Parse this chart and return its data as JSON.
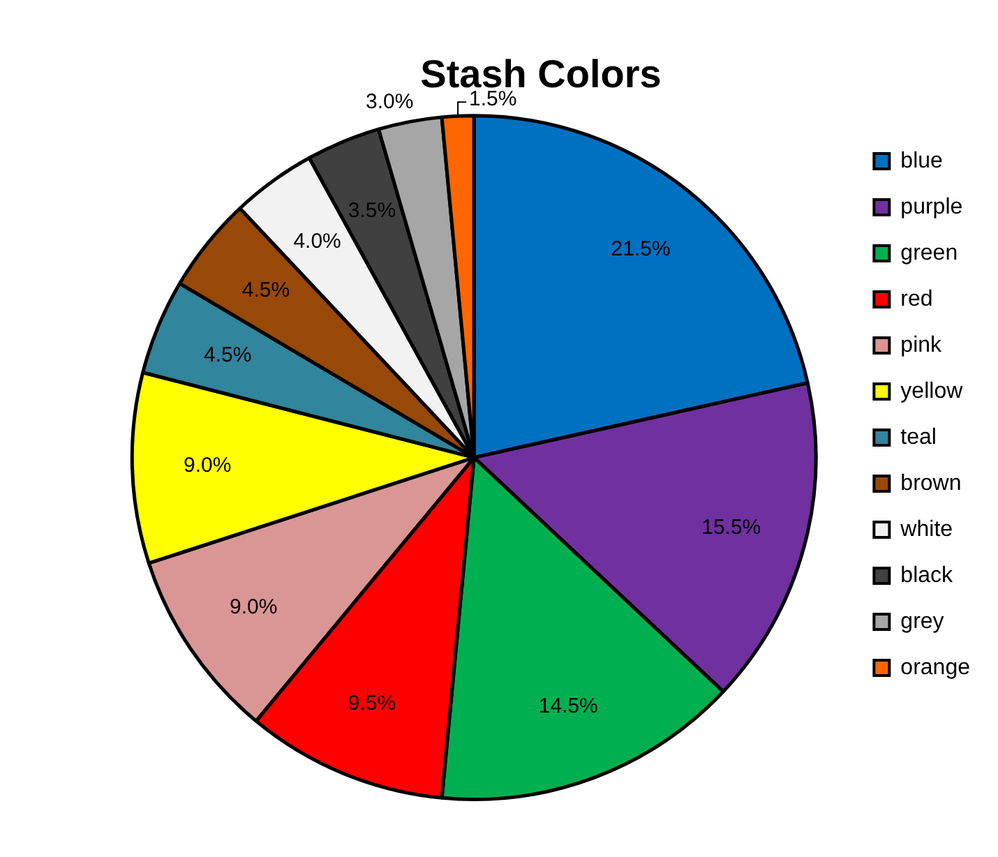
{
  "chart_data": {
    "type": "pie",
    "title": "Stash Colors",
    "categories": [
      "blue",
      "purple",
      "green",
      "red",
      "pink",
      "yellow",
      "teal",
      "brown",
      "white",
      "black",
      "grey",
      "orange"
    ],
    "values": [
      21.5,
      15.5,
      14.5,
      9.5,
      9.0,
      9.0,
      4.5,
      4.5,
      4.0,
      3.5,
      3.0,
      1.5
    ],
    "value_labels": [
      "21.5%",
      "15.5%",
      "14.5%",
      "9.5%",
      "9.0%",
      "9.0%",
      "4.5%",
      "4.5%",
      "4.0%",
      "3.5%",
      "3.0%",
      "1.5%"
    ],
    "colors": [
      "#0070c0",
      "#7030a0",
      "#00b050",
      "#ff0000",
      "#da9694",
      "#ffff00",
      "#31859c",
      "#984807",
      "#f2f2f2",
      "#404040",
      "#a6a6a6",
      "#ff6600"
    ],
    "legend": "right"
  }
}
